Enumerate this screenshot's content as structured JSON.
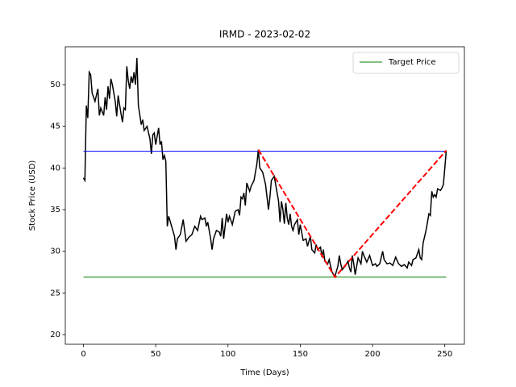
{
  "chart_data": {
    "type": "line",
    "title": "IRMD - 2023-02-02",
    "xlabel": "Time (Days)",
    "ylabel": "Stock Price (USD)",
    "xlim": [
      -12.55,
      263.55
    ],
    "ylim": [
      18.84,
      54.55
    ],
    "xticks": [
      0,
      50,
      100,
      150,
      200,
      250
    ],
    "yticks": [
      20,
      25,
      30,
      35,
      40,
      45,
      50
    ],
    "legend": "upper right",
    "price": {
      "color": "#000000",
      "x": [
        0,
        1,
        2,
        3,
        4,
        5,
        6,
        8,
        10,
        11,
        12,
        14,
        15,
        16,
        17,
        18,
        19,
        20,
        22,
        23,
        24,
        26,
        27,
        28,
        29,
        30,
        31,
        32,
        33,
        34,
        35,
        36,
        37,
        38,
        40,
        41,
        42,
        44,
        46,
        47,
        48,
        49,
        50,
        52,
        53,
        54,
        55,
        56,
        57,
        58,
        59,
        61,
        63,
        64,
        65,
        67,
        69,
        71,
        73,
        75,
        77,
        79,
        81,
        82,
        84,
        85,
        86,
        88,
        89,
        90,
        92,
        94,
        95,
        96,
        97,
        99,
        100,
        101,
        103,
        105,
        107,
        108,
        109,
        110,
        111,
        112,
        113,
        115,
        116,
        118,
        120,
        121,
        122,
        124,
        126,
        128,
        129,
        130,
        132,
        134,
        135,
        136,
        137,
        138,
        139,
        140,
        141,
        142,
        143,
        144,
        145,
        146,
        148,
        149,
        150,
        152,
        154,
        155,
        157,
        158,
        160,
        161,
        162,
        164,
        165,
        166,
        167,
        169,
        170,
        171,
        172,
        174,
        176,
        177,
        178,
        179,
        181,
        183,
        184,
        185,
        186,
        187,
        188,
        190,
        192,
        193,
        194,
        196,
        198,
        200,
        202,
        203,
        205,
        207,
        208,
        210,
        212,
        214,
        216,
        218,
        220,
        222,
        224,
        225,
        227,
        228,
        230,
        232,
        233,
        234,
        235,
        237,
        239,
        240,
        241,
        242,
        243,
        244,
        245,
        247,
        248,
        249,
        250,
        251
      ],
      "values": [
        38.8,
        38.5,
        47.5,
        46,
        51.5,
        51.2,
        49,
        48,
        49.5,
        46.3,
        47.2,
        46.3,
        48.5,
        47,
        49.8,
        48.3,
        50.7,
        50,
        48,
        46.2,
        48.7,
        46.5,
        45.5,
        47.2,
        47,
        52.2,
        50.5,
        49.5,
        51,
        50.2,
        51.5,
        50,
        53.2,
        47.5,
        45.2,
        45.8,
        44.5,
        45,
        43.5,
        41.7,
        44,
        44.2,
        42.8,
        44.8,
        42.8,
        43.2,
        41,
        41.5,
        40.8,
        33,
        34.2,
        33,
        31.8,
        30.2,
        31.5,
        32,
        33.8,
        31.2,
        31.7,
        32,
        33,
        32.5,
        34.2,
        33.8,
        34,
        33,
        33.5,
        31.5,
        30.2,
        31.5,
        32.5,
        32.3,
        31.8,
        34,
        31.5,
        34.5,
        33.5,
        34.2,
        33.2,
        34.8,
        35,
        34.3,
        36.5,
        36.3,
        37,
        35.5,
        38.2,
        37.2,
        37.8,
        38.5,
        40.5,
        42.2,
        40,
        39.5,
        38,
        35,
        36.5,
        38.5,
        39,
        37,
        36,
        33.5,
        36,
        35,
        33.3,
        35.8,
        34,
        33.2,
        34.5,
        33,
        32.5,
        33.2,
        33.8,
        32,
        33.2,
        31.3,
        31.5,
        30.6,
        31.8,
        30.2,
        29.8,
        30.8,
        30.2,
        30.5,
        29.3,
        30.2,
        28.8,
        28.5,
        29,
        28.2,
        27.5,
        27,
        28.2,
        29.5,
        28.5,
        27.8,
        28.2,
        28.8,
        28,
        27.5,
        29.5,
        28.5,
        27.2,
        29.2,
        28.5,
        30,
        29.5,
        28.7,
        29.5,
        28.3,
        28.5,
        28.2,
        28.5,
        30,
        29,
        28.5,
        28.6,
        28.3,
        29.3,
        28.5,
        28.2,
        28.4,
        28,
        28.7,
        28.3,
        29,
        29.2,
        30.2,
        29.2,
        29,
        31,
        32.5,
        34.5,
        34.3,
        37.2,
        36.5,
        36.8,
        36.5,
        37.5,
        37.3,
        37.6,
        38,
        40,
        42.1
      ]
    },
    "resistance": {
      "color": "#0000ff",
      "x": [
        0,
        251
      ],
      "values": [
        42,
        42
      ]
    },
    "pattern": {
      "color": "#ff0000",
      "x": [
        121,
        174,
        251
      ],
      "values": [
        42.2,
        26.9,
        42.1
      ]
    },
    "series": [
      {
        "name": "Target Price",
        "color": "#008000",
        "x": [
          0,
          251
        ],
        "values": [
          26.9,
          26.9
        ]
      }
    ]
  }
}
